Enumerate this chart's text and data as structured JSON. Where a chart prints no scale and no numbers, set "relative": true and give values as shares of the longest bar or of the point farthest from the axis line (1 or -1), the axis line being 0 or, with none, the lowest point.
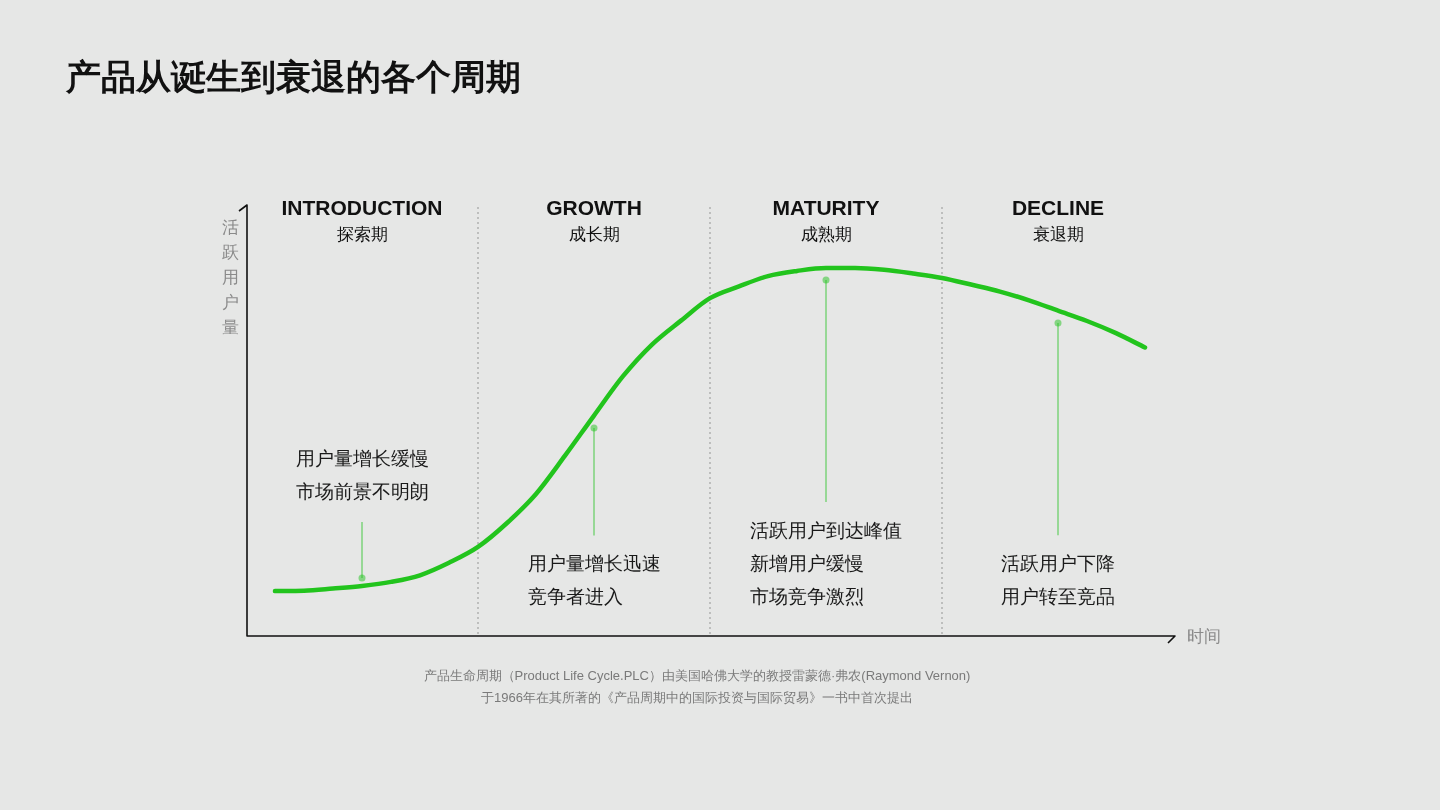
{
  "chart_data": {
    "type": "line",
    "title": "产品从诞生到衰退的各个周期",
    "xlabel": "时间",
    "ylabel": "活跃用户量",
    "relative": true,
    "categories": [
      null,
      null,
      null,
      "INTRODUCTION\n探索期",
      null,
      null,
      null,
      null,
      null,
      null,
      null,
      "GROWTH\n成长期",
      null,
      null,
      null,
      null,
      null,
      null,
      null,
      "MATURITY\n成熟期",
      null,
      null,
      null,
      null,
      null,
      null,
      null,
      "DECLINE\n衰退期",
      null,
      null,
      null
    ],
    "values": [
      0.122,
      0.123,
      0.129,
      0.136,
      0.147,
      0.165,
      0.199,
      0.242,
      0.307,
      0.386,
      0.49,
      0.599,
      0.706,
      0.792,
      0.857,
      0.918,
      0.95,
      0.978,
      0.992,
      1,
      1,
      0.995,
      0.985,
      0.973,
      0.955,
      0.936,
      0.912,
      0.884,
      0.856,
      0.823,
      0.784
    ],
    "color": "#22c41d",
    "marker": "none",
    "grid": "x",
    "annotations": [
      "产品生命周期（Product Life Cycle.PLC）由美国哈佛大学的教授雷蒙德·弗农(Raymond Vernon)",
      "于1966年在其所著的《产品周期中的国际投资与国际贸易》一书中首次提出",
      {
        "text": "市场前景不明朗",
        "x": "INTRODUCTION\n探索期"
      },
      "用户量增长缓慢",
      {
        "text": "用户量增长迅速",
        "x": "GROWTH\n成长期"
      },
      "竞争者进入",
      {
        "text": "活跃用户到达峰值",
        "x": "MATURITY\n成熟期"
      },
      "新增用户缓慢",
      "市场竞争激烈",
      {
        "text": "活跃用户下降",
        "x": "DECLINE\n衰退期"
      },
      "用户转至竞品"
    ]
  }
}
